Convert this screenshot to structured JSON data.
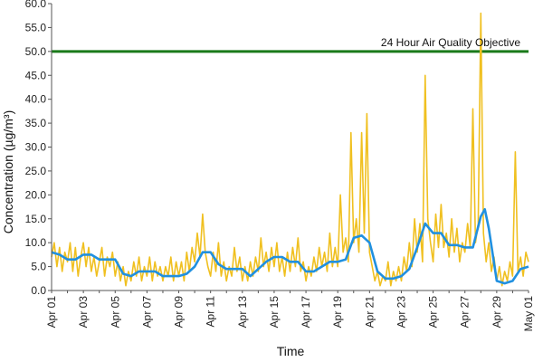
{
  "chart_data": {
    "type": "line",
    "xlabel": "Time",
    "ylabel": "Concentration (µg/m³)",
    "ylim": [
      0,
      60
    ],
    "xlim": [
      "2020-04-01",
      "2020-05-01"
    ],
    "yticks": [
      "0.0",
      "5.0",
      "10.0",
      "15.0",
      "20.0",
      "25.0",
      "30.0",
      "35.0",
      "40.0",
      "45.0",
      "50.0",
      "55.0",
      "60.0"
    ],
    "xticks": [
      "Apr 01",
      "Apr 03",
      "Apr 05",
      "Apr 07",
      "Apr 09",
      "Apr 11",
      "Apr 13",
      "Apr 15",
      "Apr 17",
      "Apr 19",
      "Apr 21",
      "Apr 23",
      "Apr 25",
      "Apr 27",
      "Apr 29",
      "May 01"
    ],
    "grid": false,
    "legend": "none",
    "colors": {
      "hourly": "#f0c020",
      "rolling_24h": "#2090e0",
      "objective": "#1a7a1a"
    },
    "reference_line": {
      "value": 50,
      "label": "24 Hour Air Quality Objective"
    },
    "series": [
      {
        "points": [
          [
            "2020-04-01T00",
            7
          ],
          [
            "2020-04-01T04",
            10
          ],
          [
            "2020-04-01T08",
            5
          ],
          [
            "2020-04-01T12",
            9
          ],
          [
            "2020-04-01T16",
            4
          ],
          [
            "2020-04-01T20",
            8
          ],
          [
            "2020-04-02T00",
            6
          ],
          [
            "2020-04-02T04",
            10
          ],
          [
            "2020-04-02T08",
            4
          ],
          [
            "2020-04-02T12",
            9
          ],
          [
            "2020-04-02T16",
            3
          ],
          [
            "2020-04-02T20",
            7
          ],
          [
            "2020-04-03T00",
            10
          ],
          [
            "2020-04-03T04",
            5
          ],
          [
            "2020-04-03T08",
            9
          ],
          [
            "2020-04-03T12",
            4
          ],
          [
            "2020-04-03T16",
            7
          ],
          [
            "2020-04-03T20",
            3
          ],
          [
            "2020-04-04T00",
            6
          ],
          [
            "2020-04-04T04",
            9
          ],
          [
            "2020-04-04T08",
            3
          ],
          [
            "2020-04-04T12",
            7
          ],
          [
            "2020-04-04T16",
            5
          ],
          [
            "2020-04-04T20",
            8
          ],
          [
            "2020-04-05T00",
            3
          ],
          [
            "2020-04-05T04",
            6
          ],
          [
            "2020-04-05T08",
            2
          ],
          [
            "2020-04-05T12",
            5
          ],
          [
            "2020-04-05T16",
            1
          ],
          [
            "2020-04-05T20",
            4
          ],
          [
            "2020-04-06T00",
            2
          ],
          [
            "2020-04-06T04",
            6
          ],
          [
            "2020-04-06T08",
            3
          ],
          [
            "2020-04-06T12",
            7
          ],
          [
            "2020-04-06T16",
            2
          ],
          [
            "2020-04-06T20",
            5
          ],
          [
            "2020-04-07T00",
            3
          ],
          [
            "2020-04-07T04",
            7
          ],
          [
            "2020-04-07T08",
            2
          ],
          [
            "2020-04-07T12",
            6
          ],
          [
            "2020-04-07T16",
            3
          ],
          [
            "2020-04-07T20",
            5
          ],
          [
            "2020-04-08T00",
            2
          ],
          [
            "2020-04-08T04",
            5
          ],
          [
            "2020-04-08T08",
            3
          ],
          [
            "2020-04-08T12",
            7
          ],
          [
            "2020-04-08T16",
            2
          ],
          [
            "2020-04-08T20",
            6
          ],
          [
            "2020-04-09T00",
            3
          ],
          [
            "2020-04-09T04",
            6
          ],
          [
            "2020-04-09T08",
            2
          ],
          [
            "2020-04-09T12",
            8
          ],
          [
            "2020-04-09T16",
            4
          ],
          [
            "2020-04-09T20",
            9
          ],
          [
            "2020-04-10T00",
            6
          ],
          [
            "2020-04-10T04",
            12
          ],
          [
            "2020-04-10T08",
            7
          ],
          [
            "2020-04-10T12",
            16
          ],
          [
            "2020-04-10T16",
            8
          ],
          [
            "2020-04-10T20",
            5
          ],
          [
            "2020-04-11T00",
            3
          ],
          [
            "2020-04-11T04",
            8
          ],
          [
            "2020-04-11T08",
            4
          ],
          [
            "2020-04-11T12",
            10
          ],
          [
            "2020-04-11T16",
            3
          ],
          [
            "2020-04-11T20",
            6
          ],
          [
            "2020-04-12T00",
            2
          ],
          [
            "2020-04-12T04",
            5
          ],
          [
            "2020-04-12T08",
            3
          ],
          [
            "2020-04-12T12",
            9
          ],
          [
            "2020-04-12T16",
            4
          ],
          [
            "2020-04-12T20",
            7
          ],
          [
            "2020-04-13T00",
            2
          ],
          [
            "2020-04-13T04",
            5
          ],
          [
            "2020-04-13T08",
            2
          ],
          [
            "2020-04-13T12",
            6
          ],
          [
            "2020-04-13T16",
            3
          ],
          [
            "2020-04-13T20",
            7
          ],
          [
            "2020-04-14T00",
            4
          ],
          [
            "2020-04-14T04",
            11
          ],
          [
            "2020-04-14T08",
            5
          ],
          [
            "2020-04-14T12",
            8
          ],
          [
            "2020-04-14T16",
            4
          ],
          [
            "2020-04-14T20",
            9
          ],
          [
            "2020-04-15T00",
            5
          ],
          [
            "2020-04-15T04",
            10
          ],
          [
            "2020-04-15T08",
            4
          ],
          [
            "2020-04-15T12",
            7
          ],
          [
            "2020-04-15T16",
            3
          ],
          [
            "2020-04-15T20",
            8
          ],
          [
            "2020-04-16T00",
            4
          ],
          [
            "2020-04-16T04",
            9
          ],
          [
            "2020-04-16T08",
            5
          ],
          [
            "2020-04-16T12",
            11
          ],
          [
            "2020-04-16T16",
            4
          ],
          [
            "2020-04-16T20",
            6
          ],
          [
            "2020-04-17T00",
            2
          ],
          [
            "2020-04-17T04",
            5
          ],
          [
            "2020-04-17T08",
            3
          ],
          [
            "2020-04-17T12",
            7
          ],
          [
            "2020-04-17T16",
            4
          ],
          [
            "2020-04-17T20",
            9
          ],
          [
            "2020-04-18T00",
            5
          ],
          [
            "2020-04-18T04",
            8
          ],
          [
            "2020-04-18T08",
            4
          ],
          [
            "2020-04-18T12",
            12
          ],
          [
            "2020-04-18T16",
            5
          ],
          [
            "2020-04-18T20",
            9
          ],
          [
            "2020-04-19T00",
            5
          ],
          [
            "2020-04-19T04",
            20
          ],
          [
            "2020-04-19T08",
            8
          ],
          [
            "2020-04-19T12",
            11
          ],
          [
            "2020-04-19T16",
            6
          ],
          [
            "2020-04-19T20",
            33
          ],
          [
            "2020-04-20T00",
            10
          ],
          [
            "2020-04-20T04",
            15
          ],
          [
            "2020-04-20T08",
            8
          ],
          [
            "2020-04-20T12",
            33
          ],
          [
            "2020-04-20T16",
            12
          ],
          [
            "2020-04-20T20",
            37
          ],
          [
            "2020-04-21T00",
            8
          ],
          [
            "2020-04-21T04",
            5
          ],
          [
            "2020-04-21T08",
            2
          ],
          [
            "2020-04-21T12",
            4
          ],
          [
            "2020-04-21T16",
            1
          ],
          [
            "2020-04-21T20",
            3
          ],
          [
            "2020-04-22T00",
            2
          ],
          [
            "2020-04-22T04",
            6
          ],
          [
            "2020-04-22T08",
            1
          ],
          [
            "2020-04-22T12",
            4
          ],
          [
            "2020-04-22T16",
            2
          ],
          [
            "2020-04-22T20",
            5
          ],
          [
            "2020-04-23T00",
            2
          ],
          [
            "2020-04-23T04",
            7
          ],
          [
            "2020-04-23T08",
            4
          ],
          [
            "2020-04-23T12",
            10
          ],
          [
            "2020-04-23T16",
            5
          ],
          [
            "2020-04-23T20",
            15
          ],
          [
            "2020-04-24T00",
            8
          ],
          [
            "2020-04-24T04",
            14
          ],
          [
            "2020-04-24T08",
            6
          ],
          [
            "2020-04-24T12",
            45
          ],
          [
            "2020-04-24T16",
            15
          ],
          [
            "2020-04-24T20",
            10
          ],
          [
            "2020-04-25T00",
            6
          ],
          [
            "2020-04-25T04",
            16
          ],
          [
            "2020-04-25T08",
            9
          ],
          [
            "2020-04-25T12",
            18
          ],
          [
            "2020-04-25T16",
            9
          ],
          [
            "2020-04-25T20",
            12
          ],
          [
            "2020-04-26T00",
            7
          ],
          [
            "2020-04-26T04",
            15
          ],
          [
            "2020-04-26T08",
            8
          ],
          [
            "2020-04-26T12",
            13
          ],
          [
            "2020-04-26T16",
            6
          ],
          [
            "2020-04-26T20",
            10
          ],
          [
            "2020-04-27T00",
            8
          ],
          [
            "2020-04-27T04",
            14
          ],
          [
            "2020-04-27T08",
            9
          ],
          [
            "2020-04-27T12",
            38
          ],
          [
            "2020-04-27T16",
            10
          ],
          [
            "2020-04-27T20",
            14
          ],
          [
            "2020-04-28T00",
            58
          ],
          [
            "2020-04-28T04",
            12
          ],
          [
            "2020-04-28T08",
            6
          ],
          [
            "2020-04-28T12",
            10
          ],
          [
            "2020-04-28T16",
            4
          ],
          [
            "2020-04-28T20",
            7
          ],
          [
            "2020-04-29T00",
            2
          ],
          [
            "2020-04-29T04",
            5
          ],
          [
            "2020-04-29T08",
            1
          ],
          [
            "2020-04-29T12",
            4
          ],
          [
            "2020-04-29T16",
            2
          ],
          [
            "2020-04-29T20",
            6
          ],
          [
            "2020-04-30T00",
            3
          ],
          [
            "2020-04-30T04",
            29
          ],
          [
            "2020-04-30T08",
            4
          ],
          [
            "2020-04-30T12",
            7
          ],
          [
            "2020-04-30T16",
            3
          ],
          [
            "2020-04-30T20",
            8
          ],
          [
            "2020-05-01T00",
            6
          ]
        ]
      },
      {
        "points": [
          [
            "2020-04-01T00",
            8
          ],
          [
            "2020-04-01T12",
            7.5
          ],
          [
            "2020-04-02T00",
            6.5
          ],
          [
            "2020-04-02T12",
            6.5
          ],
          [
            "2020-04-03T00",
            7.5
          ],
          [
            "2020-04-03T12",
            7.5
          ],
          [
            "2020-04-04T00",
            6.5
          ],
          [
            "2020-04-04T12",
            6.5
          ],
          [
            "2020-04-05T00",
            6.5
          ],
          [
            "2020-04-05T12",
            3.5
          ],
          [
            "2020-04-06T00",
            3
          ],
          [
            "2020-04-06T12",
            4
          ],
          [
            "2020-04-07T00",
            4
          ],
          [
            "2020-04-07T12",
            4
          ],
          [
            "2020-04-08T00",
            3
          ],
          [
            "2020-04-08T12",
            3
          ],
          [
            "2020-04-09T00",
            3
          ],
          [
            "2020-04-09T12",
            3.5
          ],
          [
            "2020-04-10T00",
            5
          ],
          [
            "2020-04-10T12",
            8
          ],
          [
            "2020-04-11T00",
            8
          ],
          [
            "2020-04-11T12",
            5.5
          ],
          [
            "2020-04-12T00",
            4.5
          ],
          [
            "2020-04-12T12",
            4.5
          ],
          [
            "2020-04-13T00",
            4.5
          ],
          [
            "2020-04-13T12",
            3
          ],
          [
            "2020-04-14T00",
            4.5
          ],
          [
            "2020-04-14T12",
            6
          ],
          [
            "2020-04-15T00",
            7
          ],
          [
            "2020-04-15T12",
            7
          ],
          [
            "2020-04-16T00",
            6
          ],
          [
            "2020-04-16T12",
            6
          ],
          [
            "2020-04-17T00",
            4
          ],
          [
            "2020-04-17T12",
            4
          ],
          [
            "2020-04-18T00",
            5
          ],
          [
            "2020-04-18T12",
            6
          ],
          [
            "2020-04-19T00",
            6
          ],
          [
            "2020-04-19T12",
            6.5
          ],
          [
            "2020-04-20T00",
            11
          ],
          [
            "2020-04-20T12",
            11.5
          ],
          [
            "2020-04-21T00",
            10
          ],
          [
            "2020-04-21T12",
            4
          ],
          [
            "2020-04-22T00",
            2.5
          ],
          [
            "2020-04-22T12",
            2.5
          ],
          [
            "2020-04-23T00",
            3
          ],
          [
            "2020-04-23T12",
            4.5
          ],
          [
            "2020-04-24T00",
            9
          ],
          [
            "2020-04-24T12",
            14
          ],
          [
            "2020-04-25T00",
            12
          ],
          [
            "2020-04-25T12",
            12
          ],
          [
            "2020-04-26T00",
            9.5
          ],
          [
            "2020-04-26T12",
            9.5
          ],
          [
            "2020-04-27T00",
            9
          ],
          [
            "2020-04-27T12",
            9
          ],
          [
            "2020-04-28T00",
            15.5
          ],
          [
            "2020-04-28T06",
            17
          ],
          [
            "2020-04-28T12",
            13
          ],
          [
            "2020-04-29T00",
            2
          ],
          [
            "2020-04-29T12",
            1.5
          ],
          [
            "2020-04-30T00",
            2
          ],
          [
            "2020-04-30T12",
            4.5
          ],
          [
            "2020-05-01T00",
            5
          ]
        ]
      }
    ]
  }
}
